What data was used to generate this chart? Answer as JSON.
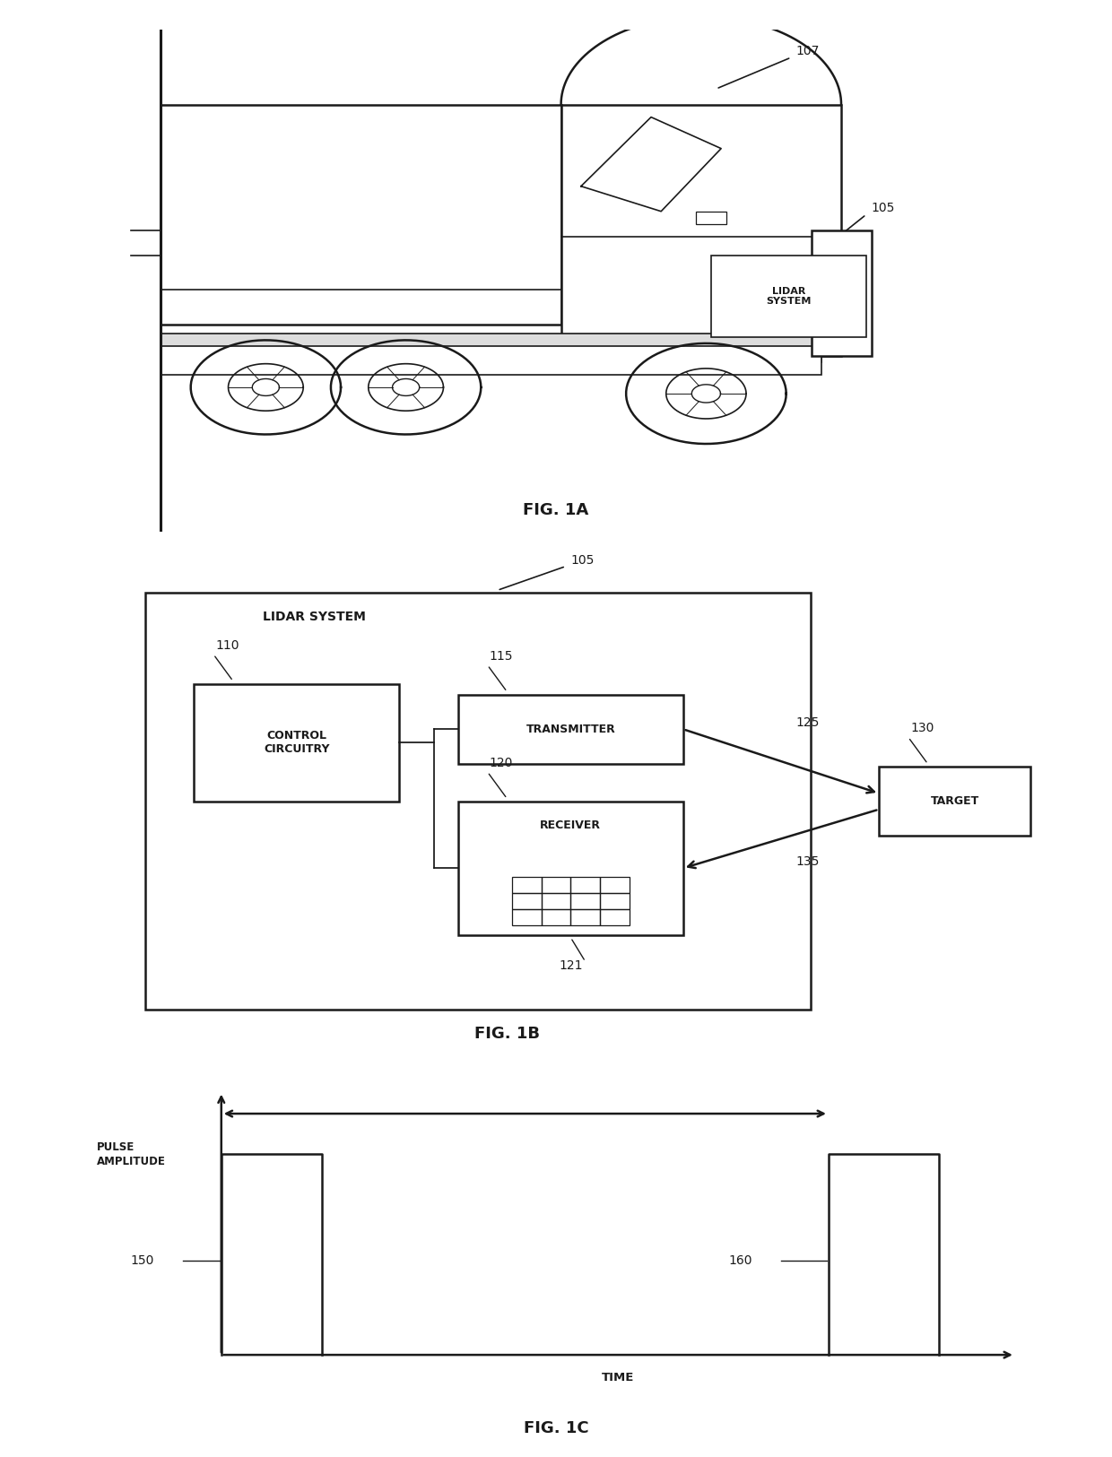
{
  "bg_color": "#ffffff",
  "line_color": "#1a1a1a",
  "fig1a_label": "FIG. 1A",
  "fig1b_label": "FIG. 1B",
  "fig1c_label": "FIG. 1C",
  "label_107": "107",
  "label_105_truck": "105",
  "label_105_block": "105",
  "label_110": "110",
  "label_115": "115",
  "label_120": "120",
  "label_121": "121",
  "label_125": "125",
  "label_130": "130",
  "label_135": "135",
  "label_150": "150",
  "label_160": "160",
  "lidar_system_text": "LIDAR\nSYSTEM",
  "lidar_system_box_label": "LIDAR SYSTEM",
  "control_circuitry_text": "CONTROL\nCIRCUITRY",
  "transmitter_text": "TRANSMITTER",
  "receiver_text": "RECEIVER",
  "target_text": "TARGET",
  "pulse_amplitude_text": "PULSE\nAMPLITUDE",
  "time_text": "TIME",
  "font_size_label": 10,
  "font_size_fig": 13,
  "font_size_box": 9,
  "font_size_small": 8
}
